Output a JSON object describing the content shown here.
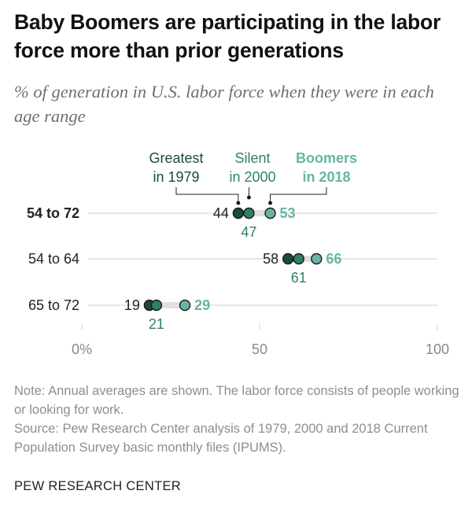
{
  "title": "Baby Boomers are participating in the labor force more than prior generations",
  "subtitle": "% of generation in U.S. labor force when they were in each age range",
  "note": "Note: Annual averages are shown. The labor force consists of people working or looking for work.",
  "source": "Source: Pew Research Center analysis of 1979, 2000 and 2018 Current Population Survey basic monthly files (IPUMS).",
  "brand": "PEW RESEARCH CENTER",
  "colors": {
    "greatest": "#1c4a3c",
    "silent": "#2f7f6c",
    "boomers": "#65b5a6",
    "track": "#e0e0e0",
    "axis_line": "#cfcfcf",
    "tick_text": "#8a8a8a",
    "label_text": "#222222"
  },
  "chart_data": {
    "type": "dot",
    "xlim": [
      0,
      100
    ],
    "x_ticks": [
      "0%",
      "50",
      "100"
    ],
    "x_tick_values": [
      0,
      50,
      100
    ],
    "categories": [
      "54 to 72",
      "54 to 64",
      "65 to 72"
    ],
    "series": [
      {
        "name_line1": "Greatest",
        "name_line2": "in 1979",
        "values": [
          44,
          58,
          19
        ]
      },
      {
        "name_line1": "Silent",
        "name_line2": "in 2000",
        "values": [
          47,
          61,
          21
        ]
      },
      {
        "name_line1": "Boomers",
        "name_line2": "in 2018",
        "values": [
          53,
          66,
          29
        ]
      }
    ],
    "data_labels": [
      [
        "44",
        "58",
        "19"
      ],
      [
        "47",
        "61",
        "21"
      ],
      [
        "53",
        "66",
        "29"
      ]
    ],
    "grid": false,
    "legend": "annotations above first row"
  }
}
